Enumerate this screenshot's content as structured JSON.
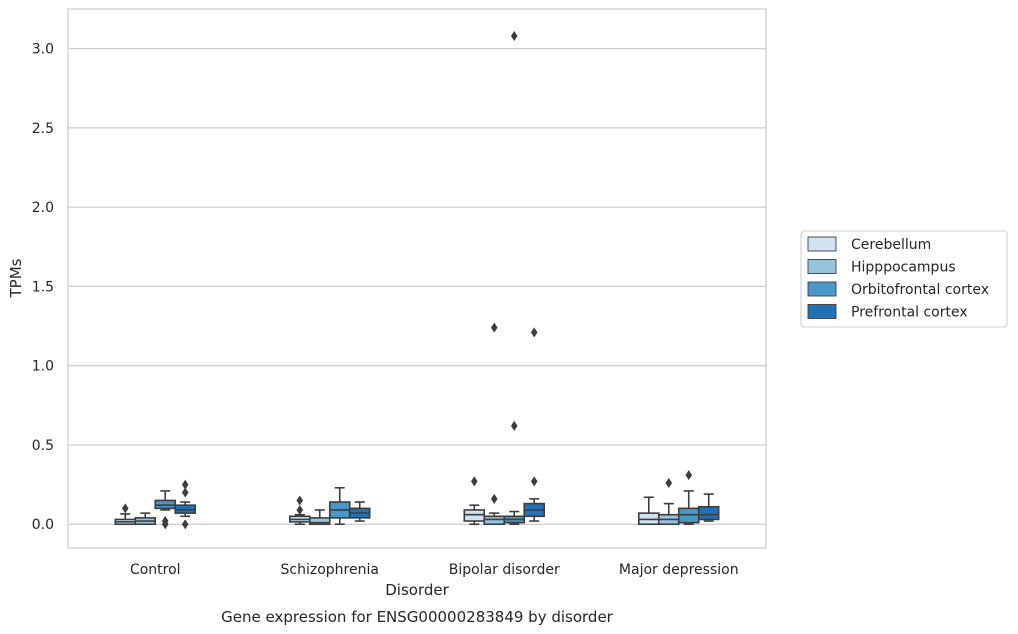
{
  "chart_data": {
    "type": "box",
    "caption": "Gene expression for ENSG00000283849 by disorder",
    "xlabel": "Disorder",
    "ylabel": "TPMs",
    "ylim": [
      -0.15,
      3.25
    ],
    "yticks": [
      "0.0",
      "0.5",
      "1.0",
      "1.5",
      "2.0",
      "2.5",
      "3.0"
    ],
    "ytick_values": [
      0.0,
      0.5,
      1.0,
      1.5,
      2.0,
      2.5,
      3.0
    ],
    "grid": "horizontal",
    "legend_position": "right",
    "categories": [
      "Control",
      "Schizophrenia",
      "Bipolar disorder",
      "Major depression"
    ],
    "series": [
      {
        "name": "Cerebellum",
        "color": "#d0e1f2",
        "boxes": [
          {
            "whislo": 0.0,
            "q1": 0.0,
            "med": 0.015,
            "q3": 0.03,
            "whishi": 0.065,
            "fliers": [
              0.1
            ]
          },
          {
            "whislo": 0.0,
            "q1": 0.015,
            "med": 0.03,
            "q3": 0.05,
            "whishi": 0.06,
            "fliers": [
              0.09,
              0.15
            ]
          },
          {
            "whislo": 0.0,
            "q1": 0.02,
            "med": 0.06,
            "q3": 0.09,
            "whishi": 0.12,
            "fliers": [
              0.27
            ]
          },
          {
            "whislo": 0.0,
            "q1": 0.0,
            "med": 0.03,
            "q3": 0.07,
            "whishi": 0.17,
            "fliers": []
          }
        ]
      },
      {
        "name": "Hipppocampus",
        "color": "#94c4df",
        "boxes": [
          {
            "whislo": 0.0,
            "q1": 0.0,
            "med": 0.02,
            "q3": 0.04,
            "whishi": 0.07,
            "fliers": []
          },
          {
            "whislo": 0.0,
            "q1": 0.0,
            "med": 0.01,
            "q3": 0.04,
            "whishi": 0.09,
            "fliers": []
          },
          {
            "whislo": 0.0,
            "q1": 0.0,
            "med": 0.03,
            "q3": 0.05,
            "whishi": 0.07,
            "fliers": [
              0.16,
              1.24
            ]
          },
          {
            "whislo": 0.0,
            "q1": 0.0,
            "med": 0.03,
            "q3": 0.06,
            "whishi": 0.13,
            "fliers": [
              0.26
            ]
          }
        ]
      },
      {
        "name": "Orbitofrontal cortex",
        "color": "#4a98c9",
        "boxes": [
          {
            "whislo": 0.09,
            "q1": 0.1,
            "med": 0.12,
            "q3": 0.15,
            "whishi": 0.21,
            "fliers": [
              0.0,
              0.02
            ]
          },
          {
            "whislo": 0.0,
            "q1": 0.04,
            "med": 0.09,
            "q3": 0.14,
            "whishi": 0.23,
            "fliers": []
          },
          {
            "whislo": 0.0,
            "q1": 0.01,
            "med": 0.03,
            "q3": 0.05,
            "whishi": 0.08,
            "fliers": [
              0.62,
              3.08
            ]
          },
          {
            "whislo": 0.0,
            "q1": 0.01,
            "med": 0.06,
            "q3": 0.1,
            "whishi": 0.21,
            "fliers": [
              0.31
            ]
          }
        ]
      },
      {
        "name": "Prefrontal cortex",
        "color": "#2171b5",
        "boxes": [
          {
            "whislo": 0.05,
            "q1": 0.07,
            "med": 0.09,
            "q3": 0.12,
            "whishi": 0.14,
            "fliers": [
              0.0,
              0.2,
              0.25
            ]
          },
          {
            "whislo": 0.02,
            "q1": 0.04,
            "med": 0.07,
            "q3": 0.1,
            "whishi": 0.14,
            "fliers": []
          },
          {
            "whislo": 0.02,
            "q1": 0.05,
            "med": 0.09,
            "q3": 0.13,
            "whishi": 0.16,
            "fliers": [
              0.27,
              1.21
            ]
          },
          {
            "whislo": 0.02,
            "q1": 0.03,
            "med": 0.06,
            "q3": 0.11,
            "whishi": 0.19,
            "fliers": []
          }
        ]
      }
    ]
  }
}
